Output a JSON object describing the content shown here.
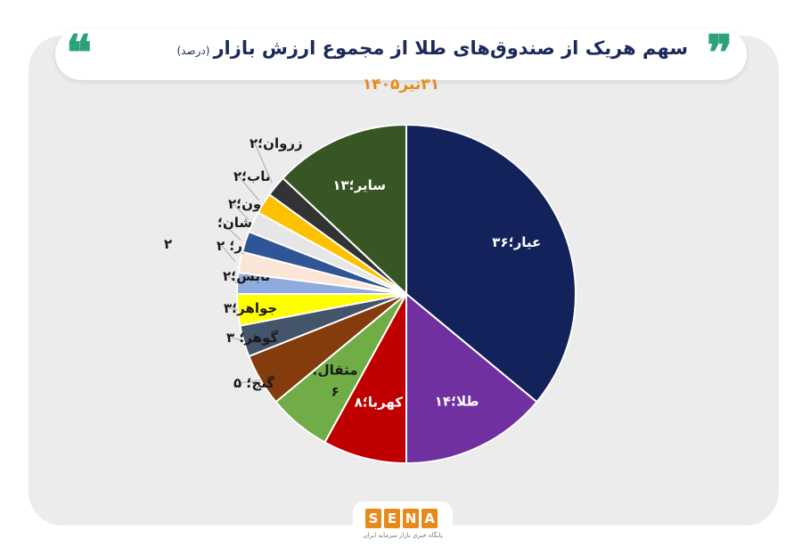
{
  "header": {
    "title": "سهم هریک از صندوق‌های طلا از مجموع ارزش بازار",
    "title_note": "(درصد)",
    "date": "۳۱تیر۱۴۰۵"
  },
  "logo": {
    "letters": [
      "S",
      "E",
      "N",
      "A"
    ],
    "tagline": "پایگاه خبری بازار سرمایه ایران"
  },
  "chart_data": {
    "type": "pie",
    "title": "سهم هریک از صندوق‌های طلا از مجموع ارزش بازار (درصد)",
    "subtitle": "۳۱تیر۱۴۰۵",
    "start": "12 o'clock",
    "direction": "clockwise",
    "slices": [
      {
        "label": "عیار؛۳۶",
        "name": "عیار",
        "value": 36,
        "color": "#13225a",
        "label_position": "inside",
        "text_color": "#ffffff"
      },
      {
        "label": "طلا؛۱۴",
        "name": "طلا",
        "value": 14,
        "color": "#7030a0",
        "label_position": "inside",
        "text_color": "#ffffff"
      },
      {
        "label": "کهربا؛۸",
        "name": "کهربا",
        "value": 8,
        "color": "#c00000",
        "label_position": "inside",
        "text_color": "#ffffff"
      },
      {
        "label": "مثقال؛\n۶",
        "name": "مثقال",
        "value": 6,
        "color": "#70ad47",
        "label_position": "inside",
        "text_color": "#1a1a1a"
      },
      {
        "label": "گنج؛ ۵",
        "name": "گنج",
        "value": 5,
        "color": "#843c0c",
        "label_position": "outside",
        "text_color": "#1a1a1a"
      },
      {
        "label": "گوهر؛ ۳",
        "name": "گوهر",
        "value": 3,
        "color": "#44546a",
        "label_position": "outside",
        "text_color": "#1a1a1a"
      },
      {
        "label": "جواهر؛۳",
        "name": "جواهر",
        "value": 3,
        "color": "#ffff00",
        "label_position": "outside",
        "text_color": "#1a1a1a"
      },
      {
        "label": "تابش؛۲",
        "name": "تابش",
        "value": 2,
        "color": "#8faadc",
        "label_position": "outside",
        "text_color": "#1a1a1a"
      },
      {
        "label": "زر؛ ۲",
        "name": "زر",
        "value": 2,
        "color": "#fbe5d6",
        "label_position": "outside",
        "text_color": "#1a1a1a"
      },
      {
        "label": "درخشان؛\n۲",
        "name": "درخشان",
        "value": 2,
        "color": "#2f5597",
        "label_position": "outside",
        "text_color": "#1a1a1a"
      },
      {
        "label": "آلتون؛۲",
        "name": "آلتون",
        "value": 2,
        "color": "#e7e6e6",
        "label_position": "outside",
        "text_color": "#1a1a1a"
      },
      {
        "label": "ناب؛۲",
        "name": "ناب",
        "value": 2,
        "color": "#ffc000",
        "label_position": "outside",
        "text_color": "#1a1a1a"
      },
      {
        "label": "زروان؛۲",
        "name": "زروان",
        "value": 2,
        "color": "#333333",
        "label_position": "outside",
        "text_color": "#1a1a1a"
      },
      {
        "label": "سایر؛۱۳",
        "name": "سایر",
        "value": 13,
        "color": "#375623",
        "label_position": "inside",
        "text_color": "#ffffff"
      }
    ]
  }
}
